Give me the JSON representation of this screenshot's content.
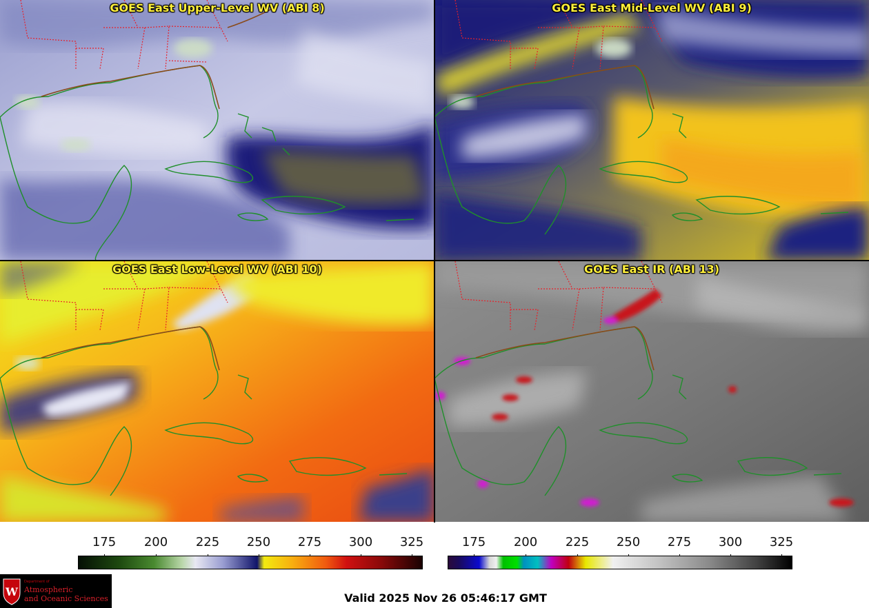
{
  "panels": [
    {
      "id": "upper",
      "title": "GOES East Upper-Level WV (ABI 8)"
    },
    {
      "id": "mid",
      "title": "GOES East Mid-Level WV (ABI 9)"
    },
    {
      "id": "low",
      "title": "GOES East Low-Level WV (ABI 10)"
    },
    {
      "id": "ir",
      "title": "GOES East IR (ABI 13)"
    }
  ],
  "colorbars": {
    "wv": {
      "ticks": [
        "175",
        "200",
        "225",
        "250",
        "275",
        "300",
        "325"
      ]
    },
    "ir": {
      "ticks": [
        "175",
        "200",
        "225",
        "250",
        "275",
        "300",
        "325"
      ]
    }
  },
  "logo": {
    "dept": "Department of",
    "line1": "Atmospheric",
    "line2": "and Oceanic Sciences",
    "crest": "W"
  },
  "valid_time": "Valid 2025 Nov 26 05:46:17 GMT",
  "colors": {
    "title_text": "#ffef3a",
    "state_borders": "#e8202a",
    "coastline": "#1f8f2a"
  }
}
